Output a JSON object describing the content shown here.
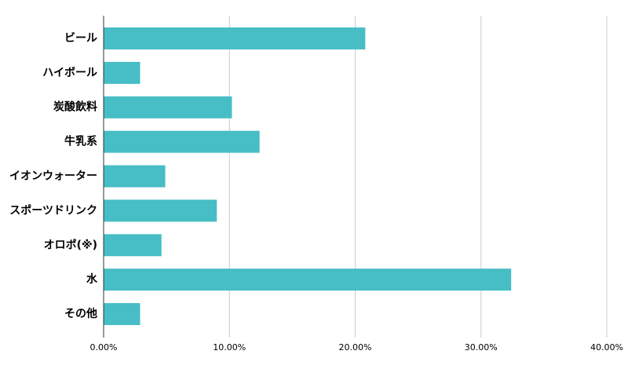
{
  "chart_data": {
    "type": "hbar",
    "categories": [
      "ビール",
      "ハイボール",
      "炭酸飲料",
      "牛乳系",
      "イオンウォーター",
      "スポーツドリンク",
      "オロポ(※)",
      "水",
      "その他"
    ],
    "values": [
      20.8,
      2.9,
      10.2,
      12.4,
      4.9,
      9.0,
      4.6,
      32.4,
      2.9
    ],
    "color": "#47bdc5",
    "xlim": [
      0,
      40
    ],
    "xticks": [
      {
        "value": 0,
        "label": "0.00%"
      },
      {
        "value": 10,
        "label": "10.00%"
      },
      {
        "value": 20,
        "label": "20.00%"
      },
      {
        "value": 30,
        "label": "30.00%"
      },
      {
        "value": 40,
        "label": "40.00%"
      }
    ],
    "grid": true
  }
}
